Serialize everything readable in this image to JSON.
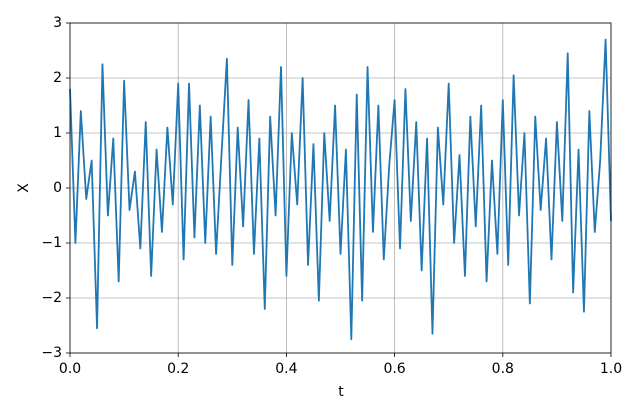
{
  "chart_data": {
    "type": "line",
    "xlabel": "t",
    "ylabel": "X",
    "x": [
      0,
      0.01,
      0.02,
      0.03,
      0.04,
      0.05,
      0.06,
      0.07,
      0.08,
      0.09,
      0.1,
      0.11,
      0.12,
      0.13,
      0.14,
      0.15,
      0.16,
      0.17,
      0.18,
      0.19,
      0.2,
      0.21,
      0.22,
      0.23,
      0.24,
      0.25,
      0.26,
      0.27,
      0.28,
      0.29,
      0.3,
      0.31,
      0.32,
      0.33,
      0.34,
      0.35,
      0.36,
      0.37,
      0.38,
      0.39,
      0.4,
      0.41,
      0.42,
      0.43,
      0.44,
      0.45,
      0.46,
      0.47,
      0.48,
      0.49,
      0.5,
      0.51,
      0.52,
      0.53,
      0.54,
      0.55,
      0.56,
      0.57,
      0.58,
      0.59,
      0.6,
      0.61,
      0.62,
      0.63,
      0.64,
      0.65,
      0.66,
      0.67,
      0.68,
      0.69,
      0.7,
      0.71,
      0.72,
      0.73,
      0.74,
      0.75,
      0.76,
      0.77,
      0.78,
      0.79,
      0.8,
      0.81,
      0.82,
      0.83,
      0.84,
      0.85,
      0.86,
      0.87,
      0.88,
      0.89,
      0.9,
      0.91,
      0.92,
      0.93,
      0.94,
      0.95,
      0.96,
      0.97,
      0.98,
      0.99,
      1
    ],
    "series": [
      {
        "color": "#1f77b4",
        "values": [
          1.8,
          -1.0,
          1.4,
          -0.2,
          0.5,
          -2.55,
          2.25,
          -0.5,
          0.9,
          -1.7,
          1.95,
          -0.4,
          0.3,
          -1.1,
          1.2,
          -1.6,
          0.7,
          -0.8,
          1.1,
          -0.3,
          1.9,
          -1.3,
          1.9,
          -0.9,
          1.5,
          -1.0,
          1.3,
          -1.2,
          0.6,
          2.35,
          -1.4,
          1.1,
          -0.7,
          1.6,
          -1.2,
          0.9,
          -2.2,
          1.3,
          -0.5,
          2.2,
          -1.6,
          1.0,
          -0.3,
          2.0,
          -1.4,
          0.8,
          -2.05,
          1.0,
          -0.6,
          1.5,
          -1.2,
          0.7,
          -2.75,
          1.7,
          -2.05,
          2.2,
          -0.8,
          1.5,
          -1.3,
          0.4,
          1.6,
          -1.1,
          1.8,
          -0.6,
          1.2,
          -1.5,
          0.9,
          -2.65,
          1.1,
          -0.3,
          1.9,
          -1.0,
          0.6,
          -1.6,
          1.3,
          -0.7,
          1.5,
          -1.7,
          0.5,
          -1.2,
          1.6,
          -1.4,
          2.05,
          -0.5,
          1.0,
          -2.1,
          1.3,
          -0.4,
          0.9,
          -1.3,
          1.2,
          -0.6,
          2.45,
          -1.9,
          0.7,
          -2.25,
          1.4,
          -0.8,
          0.5,
          2.7,
          -0.6
        ]
      }
    ],
    "xlim": [
      0,
      1
    ],
    "ylim": [
      -3,
      3
    ],
    "xticks": [
      {
        "value": 0,
        "label": "0.0"
      },
      0.2,
      0.4,
      0.6,
      0.8,
      {
        "value": 1,
        "label": "1.0"
      }
    ],
    "yticks": [
      {
        "value": -3,
        "label": "−3"
      },
      {
        "value": -2,
        "label": "−2"
      },
      {
        "value": -1,
        "label": "−1"
      },
      0,
      1,
      2,
      3
    ],
    "grid": true
  }
}
